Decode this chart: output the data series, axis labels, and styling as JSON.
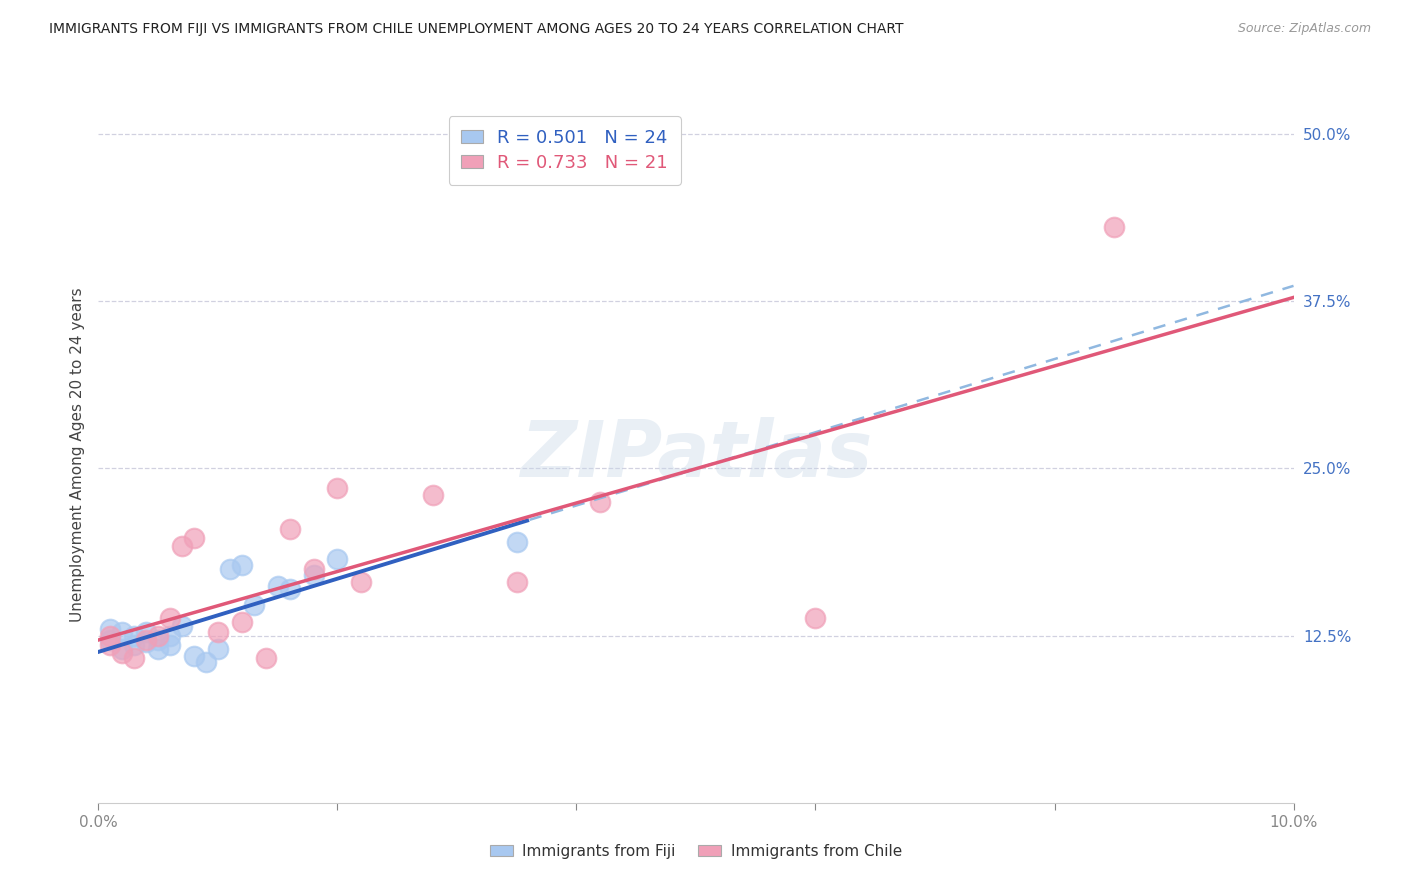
{
  "title": "IMMIGRANTS FROM FIJI VS IMMIGRANTS FROM CHILE UNEMPLOYMENT AMONG AGES 20 TO 24 YEARS CORRELATION CHART",
  "source": "Source: ZipAtlas.com",
  "ylabel_label": "Unemployment Among Ages 20 to 24 years",
  "x_min": 0.0,
  "x_max": 0.1,
  "y_min": 0.0,
  "y_max": 0.52,
  "fiji_color": "#a8c8f0",
  "chile_color": "#f0a0b8",
  "fiji_line_color": "#3060c0",
  "chile_line_color": "#e05878",
  "fiji_line_dashed_color": "#90b8e0",
  "R_fiji": 0.501,
  "N_fiji": 24,
  "R_chile": 0.733,
  "N_chile": 21,
  "fiji_x": [
    0.001,
    0.001,
    0.002,
    0.002,
    0.003,
    0.003,
    0.004,
    0.004,
    0.005,
    0.005,
    0.006,
    0.006,
    0.007,
    0.008,
    0.009,
    0.01,
    0.011,
    0.012,
    0.013,
    0.015,
    0.016,
    0.018,
    0.02,
    0.035
  ],
  "fiji_y": [
    0.13,
    0.122,
    0.128,
    0.115,
    0.125,
    0.118,
    0.12,
    0.128,
    0.122,
    0.115,
    0.118,
    0.125,
    0.132,
    0.11,
    0.105,
    0.115,
    0.175,
    0.178,
    0.148,
    0.162,
    0.16,
    0.17,
    0.182,
    0.195
  ],
  "chile_x": [
    0.001,
    0.001,
    0.002,
    0.003,
    0.004,
    0.005,
    0.006,
    0.007,
    0.008,
    0.01,
    0.012,
    0.014,
    0.016,
    0.018,
    0.02,
    0.022,
    0.028,
    0.035,
    0.042,
    0.06,
    0.085
  ],
  "chile_y": [
    0.125,
    0.118,
    0.112,
    0.108,
    0.122,
    0.125,
    0.138,
    0.192,
    0.198,
    0.128,
    0.135,
    0.108,
    0.205,
    0.175,
    0.235,
    0.165,
    0.23,
    0.165,
    0.225,
    0.138,
    0.43
  ],
  "background_color": "#ffffff",
  "grid_color": "#ccccdd",
  "legend_fiji_label": "Immigrants from Fiji",
  "legend_chile_label": "Immigrants from Chile",
  "fiji_line_x_solid_end": 0.036,
  "chile_line_start_y": 0.075
}
